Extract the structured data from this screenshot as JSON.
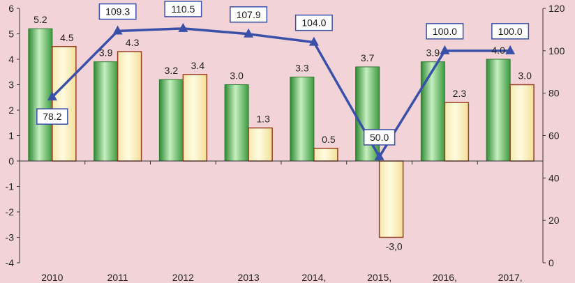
{
  "chart_data": {
    "type": "bar",
    "categories": [
      "2010",
      "2011",
      "2012",
      "2013",
      "2014,",
      "2015,",
      "2016,",
      "2017,"
    ],
    "series": [
      {
        "type": "bar",
        "axis": "left",
        "color": "#3a9a3a",
        "values": [
          5.2,
          3.9,
          3.2,
          3.0,
          3.3,
          3.7,
          3.9,
          4.0
        ],
        "labels": [
          "5.2",
          "3.9",
          "3.2",
          "3.0",
          "3.3",
          "3.7",
          "3.9",
          "4.0"
        ]
      },
      {
        "type": "bar",
        "axis": "left",
        "color": "#a8482a",
        "values": [
          4.5,
          4.3,
          3.4,
          1.3,
          0.5,
          -3.0,
          2.3,
          3.0
        ],
        "labels": [
          "4.5",
          "4.3",
          "3.4",
          "1.3",
          "0.5",
          "-3,0",
          "2.3",
          "3.0"
        ]
      },
      {
        "type": "line",
        "axis": "right",
        "color": "#3a4fa8",
        "values": [
          78.2,
          109.3,
          110.5,
          107.9,
          104.0,
          50.0,
          100.0,
          100.0
        ],
        "labels": [
          "78.2",
          "109.3",
          "110.5",
          "107.9",
          "104.0",
          "50.0",
          "100.0",
          "100.0"
        ]
      }
    ],
    "y_left": {
      "min": -4,
      "max": 6,
      "ticks": [
        "-4",
        "-3",
        "-2",
        "-1",
        "0",
        "1",
        "2",
        "3",
        "4",
        "5",
        "6"
      ]
    },
    "y_right": {
      "min": 0,
      "max": 120,
      "ticks": [
        "0",
        "20",
        "40",
        "60",
        "80",
        "100",
        "120"
      ]
    },
    "grid": false,
    "legend": "none"
  }
}
